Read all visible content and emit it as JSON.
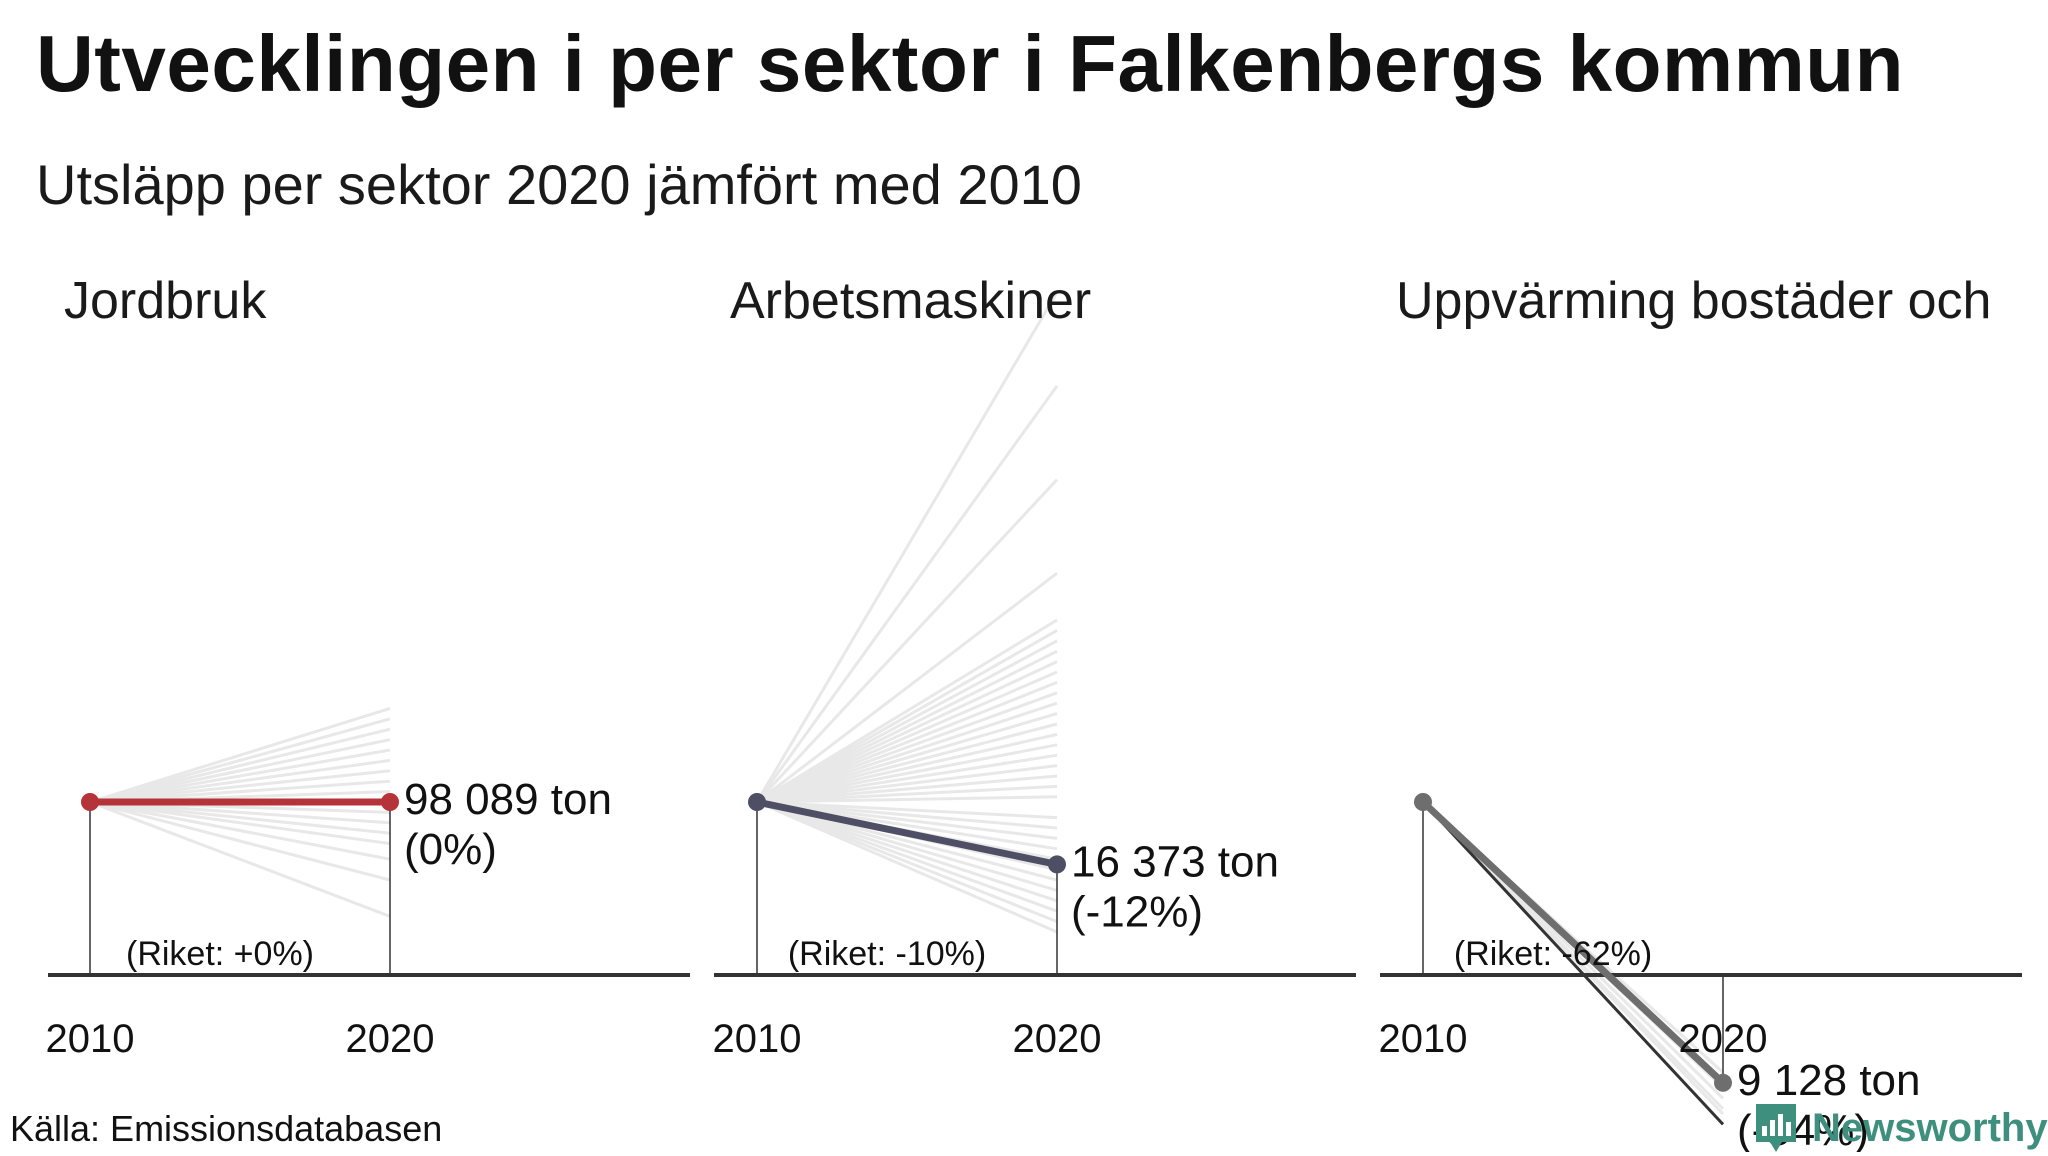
{
  "title": "Utvecklingen i per sektor i Falkenbergs kommun",
  "subtitle": "Utsläpp per sektor 2020 jämfört med 2010",
  "source": "Källa: Emissionsdatabasen",
  "brand": {
    "name": "Newsworthy",
    "icon": "newsworthy-logo-icon",
    "color": "#3f8f7f"
  },
  "colors": {
    "background_lines": "#e8e8e8",
    "axis": "#333333"
  },
  "chart_data": [
    {
      "type": "line",
      "title": "Jordbruk",
      "x": [
        "2010",
        "2020"
      ],
      "y_index_2010": 100,
      "ylim": [
        70,
        130
      ],
      "highlight_color": "#b5343a",
      "highlight": {
        "name": "Falkenbergs kommun",
        "values": [
          100,
          100
        ]
      },
      "value_label": "98 089 ton",
      "change_label": "(0%)",
      "national_label": "(Riket: +0%)",
      "background_endpoints": [
        118,
        116,
        114,
        112,
        110,
        108,
        106,
        104,
        102,
        98,
        96,
        94,
        92,
        89,
        85,
        78
      ]
    },
    {
      "type": "line",
      "title": "Arbetsmaskiner",
      "x": [
        "2010",
        "2020"
      ],
      "y_index_2010": 100,
      "ylim": [
        70,
        200
      ],
      "highlight_color": "#4e4f65",
      "highlight": {
        "name": "Falkenbergs kommun",
        "values": [
          100,
          88
        ]
      },
      "value_label": "16 373 ton",
      "change_label": "(-12%)",
      "national_label": "(Riket: -10%)",
      "background_endpoints": [
        198,
        180,
        162,
        144,
        135,
        133,
        131,
        129,
        127,
        125,
        123,
        121,
        119,
        117,
        115,
        113,
        111,
        109,
        107,
        105,
        103,
        101,
        97,
        95,
        93,
        91,
        89,
        87,
        85,
        83,
        81,
        79,
        77,
        75
      ]
    },
    {
      "type": "line",
      "title": "Uppvärming bostäder och",
      "x": [
        "2010",
        "2020"
      ],
      "y_index_2010": 100,
      "ylim": [
        20,
        200
      ],
      "highlight_color": "#6e6e6e",
      "highlight": {
        "name": "Falkenbergs kommun",
        "values": [
          100,
          46
        ]
      },
      "value_label": "9 128 ton",
      "change_label": "(-54%)",
      "national_label": "(Riket: -62%)",
      "dark_line_values": [
        100,
        38
      ],
      "background_endpoints": [
        48,
        45,
        43,
        41,
        40,
        38
      ]
    }
  ]
}
